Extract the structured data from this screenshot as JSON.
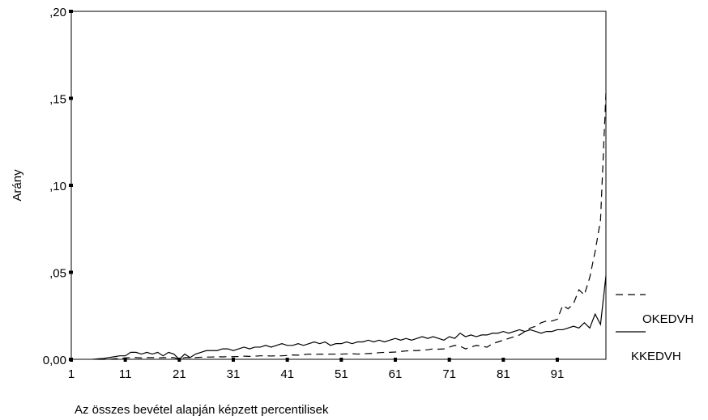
{
  "chart_data": {
    "type": "line",
    "x_label": "Az összes bevétel alapján képzett percentilisek",
    "y_label": "Arány",
    "x": [
      1,
      2,
      3,
      4,
      5,
      6,
      7,
      8,
      9,
      10,
      11,
      12,
      13,
      14,
      15,
      16,
      17,
      18,
      19,
      20,
      21,
      22,
      23,
      24,
      25,
      26,
      27,
      28,
      29,
      30,
      31,
      32,
      33,
      34,
      35,
      36,
      37,
      38,
      39,
      40,
      41,
      42,
      43,
      44,
      45,
      46,
      47,
      48,
      49,
      50,
      51,
      52,
      53,
      54,
      55,
      56,
      57,
      58,
      59,
      60,
      61,
      62,
      63,
      64,
      65,
      66,
      67,
      68,
      69,
      70,
      71,
      72,
      73,
      74,
      75,
      76,
      77,
      78,
      79,
      80,
      81,
      82,
      83,
      84,
      85,
      86,
      87,
      88,
      89,
      90,
      91,
      92,
      93,
      94,
      95,
      96,
      97,
      98,
      99,
      100
    ],
    "xlim": [
      1,
      100
    ],
    "xticks": [
      1,
      11,
      21,
      31,
      41,
      51,
      61,
      71,
      81,
      91
    ],
    "ylim": [
      0,
      0.2
    ],
    "yticks": [
      {
        "value": 0,
        "label": "0,00"
      },
      {
        "value": 0.05,
        "label": ",05"
      },
      {
        "value": 0.1,
        "label": ",10"
      },
      {
        "value": 0.15,
        "label": ",15"
      },
      {
        "value": 0.2,
        "label": ",20"
      }
    ],
    "legend": "right",
    "series": [
      {
        "name": "OKEDVH",
        "color": "#000000",
        "style": "dashed",
        "values": [
          null,
          null,
          null,
          null,
          null,
          0,
          0,
          0,
          0.0003,
          0.0005,
          0.0008,
          0.001,
          0.001,
          0.0008,
          0.001,
          0.001,
          0.0008,
          0.001,
          0.001,
          0.001,
          0,
          0.001,
          0.001,
          0.001,
          0.0012,
          0.0013,
          0.0013,
          0.0015,
          0.0014,
          0.0015,
          0.0015,
          0.0016,
          0.0018,
          0.0017,
          0.0018,
          0.002,
          0.002,
          0.0019,
          0.002,
          0.002,
          0.0022,
          0.0025,
          0.0024,
          0.0027,
          0.003,
          0.0028,
          0.003,
          0.0029,
          0.003,
          0.003,
          0.003,
          0.0031,
          0.0032,
          0.003,
          0.0032,
          0.0033,
          0.0035,
          0.0038,
          0.004,
          0.004,
          0.0042,
          0.0045,
          0.0048,
          0.005,
          0.005,
          0.0052,
          0.0055,
          0.006,
          0.0058,
          0.006,
          0.007,
          0.008,
          0.0075,
          0.006,
          0.007,
          0.008,
          0.0075,
          0.007,
          0.009,
          0.01,
          0.011,
          0.012,
          0.013,
          0.014,
          0.016,
          0.018,
          0.019,
          0.021,
          0.022,
          0.022,
          0.023,
          0.031,
          0.029,
          0.032,
          0.04,
          0.037,
          0.047,
          0.062,
          0.08,
          0.153
        ]
      },
      {
        "name": "KKEDVH",
        "color": "#000000",
        "style": "solid",
        "values": [
          null,
          null,
          null,
          null,
          0,
          0.0003,
          0.0005,
          0.001,
          0.0015,
          0.002,
          0.002,
          0.004,
          0.004,
          0.003,
          0.004,
          0.003,
          0.004,
          0.002,
          0.004,
          0.003,
          0,
          0.003,
          0.001,
          0.003,
          0.004,
          0.005,
          0.005,
          0.005,
          0.006,
          0.006,
          0.005,
          0.006,
          0.007,
          0.006,
          0.007,
          0.007,
          0.008,
          0.007,
          0.008,
          0.009,
          0.008,
          0.008,
          0.009,
          0.008,
          0.009,
          0.01,
          0.009,
          0.01,
          0.008,
          0.009,
          0.009,
          0.01,
          0.009,
          0.01,
          0.01,
          0.011,
          0.01,
          0.011,
          0.01,
          0.011,
          0.012,
          0.011,
          0.012,
          0.011,
          0.012,
          0.013,
          0.012,
          0.013,
          0.012,
          0.011,
          0.013,
          0.012,
          0.015,
          0.013,
          0.014,
          0.013,
          0.014,
          0.014,
          0.015,
          0.015,
          0.016,
          0.015,
          0.016,
          0.017,
          0.016,
          0.017,
          0.016,
          0.015,
          0.016,
          0.016,
          0.017,
          0.017,
          0.018,
          0.019,
          0.018,
          0.021,
          0.018,
          0.026,
          0.02,
          0.048
        ]
      }
    ]
  }
}
